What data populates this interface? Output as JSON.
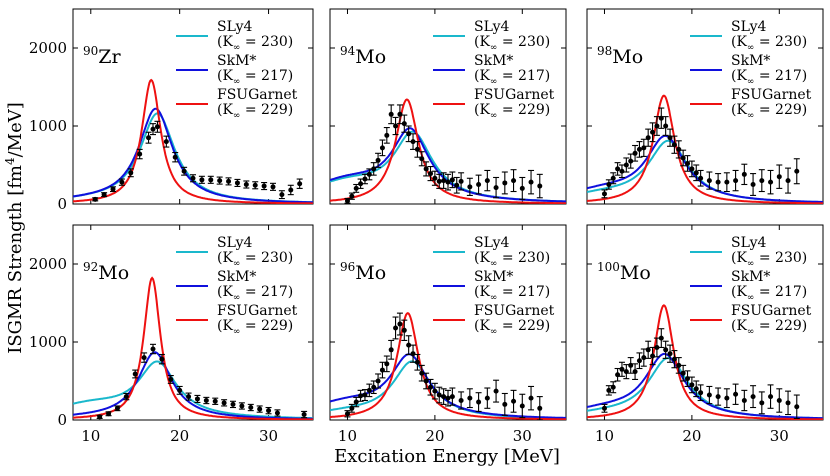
{
  "figure": {
    "ylabel": "ISGMR Strength [fm",
    "ylabel_sup": "4",
    "ylabel_tail": "/MeV]",
    "xlabel": "Excitation Energy [MeV]"
  },
  "legend": [
    {
      "name": "SLy4",
      "param": "(K",
      "sub": "∞",
      "value": " = 230)",
      "color": "#1ab8cc"
    },
    {
      "name": "SkM*",
      "param": "(K",
      "sub": "∞",
      "value": " = 217)",
      "color": "#1010dd"
    },
    {
      "name": "FSUGarnet",
      "param": "(K",
      "sub": "∞",
      "value": " = 229)",
      "color": "#ee1111"
    }
  ],
  "chart_data": [
    {
      "type": "line",
      "nucleus": "Zr",
      "mass": "90",
      "xlim": [
        8,
        35
      ],
      "ylim": [
        0,
        2500
      ],
      "xticks": [
        10,
        20,
        30
      ],
      "yticks": [
        0,
        1000,
        2000
      ],
      "xticklabels": [
        "10",
        "20",
        "30"
      ],
      "yticklabels": [
        "0",
        "1000",
        "2000"
      ],
      "series": [
        {
          "name": "SLy4",
          "peak": 17.5,
          "height": 1150,
          "width": 2.4,
          "base": 30
        },
        {
          "name": "SkM*",
          "peak": 17.3,
          "height": 1210,
          "width": 2.3,
          "base": 30
        },
        {
          "name": "FSUGarnet",
          "peak": 16.8,
          "height": 1590,
          "width": 1.3,
          "base": 0
        }
      ],
      "exp": [
        [
          10.5,
          60,
          20
        ],
        [
          11.5,
          120,
          25
        ],
        [
          12.5,
          190,
          30
        ],
        [
          13.5,
          280,
          40
        ],
        [
          14.5,
          400,
          50
        ],
        [
          15.5,
          640,
          60
        ],
        [
          16.5,
          850,
          70
        ],
        [
          17.0,
          960,
          70
        ],
        [
          17.5,
          990,
          70
        ],
        [
          18.5,
          800,
          70
        ],
        [
          19.5,
          600,
          60
        ],
        [
          20.5,
          420,
          50
        ],
        [
          21.5,
          330,
          45
        ],
        [
          22.5,
          310,
          45
        ],
        [
          23.5,
          310,
          45
        ],
        [
          24.5,
          300,
          45
        ],
        [
          25.5,
          290,
          45
        ],
        [
          26.5,
          270,
          45
        ],
        [
          27.5,
          250,
          45
        ],
        [
          28.5,
          240,
          45
        ],
        [
          29.5,
          230,
          45
        ],
        [
          30.5,
          220,
          45
        ],
        [
          31.5,
          120,
          50
        ],
        [
          32.5,
          180,
          60
        ],
        [
          33.5,
          260,
          60
        ]
      ]
    },
    {
      "type": "line",
      "nucleus": "Mo",
      "mass": "94",
      "xlim": [
        8,
        35
      ],
      "ylim": [
        0,
        2500
      ],
      "xticks": [
        10,
        20,
        30
      ],
      "yticks": [
        0,
        1000,
        2000
      ],
      "xticklabels": [
        "10",
        "20",
        "30"
      ],
      "yticklabels": [
        "",
        "",
        ""
      ],
      "series": [
        {
          "name": "SLy4",
          "peak": 17.5,
          "height": 830,
          "width": 2.7,
          "base": 250
        },
        {
          "name": "SkM*",
          "peak": 17.2,
          "height": 860,
          "width": 2.6,
          "base": 270
        },
        {
          "name": "FSUGarnet",
          "peak": 16.8,
          "height": 1340,
          "width": 1.6,
          "base": 0
        }
      ],
      "exp": [
        [
          10.0,
          40,
          30
        ],
        [
          10.5,
          100,
          40
        ],
        [
          11.0,
          200,
          50
        ],
        [
          11.5,
          260,
          60
        ],
        [
          12.0,
          320,
          60
        ],
        [
          12.5,
          380,
          70
        ],
        [
          13.0,
          450,
          80
        ],
        [
          13.5,
          560,
          90
        ],
        [
          14.0,
          720,
          100
        ],
        [
          14.5,
          880,
          100
        ],
        [
          15.0,
          1150,
          120
        ],
        [
          15.5,
          1000,
          110
        ],
        [
          16.0,
          1150,
          120
        ],
        [
          16.5,
          1030,
          110
        ],
        [
          17.0,
          900,
          100
        ],
        [
          17.5,
          800,
          100
        ],
        [
          18.0,
          700,
          100
        ],
        [
          18.5,
          580,
          90
        ],
        [
          19.0,
          450,
          90
        ],
        [
          19.5,
          390,
          90
        ],
        [
          20.0,
          330,
          90
        ],
        [
          20.5,
          290,
          90
        ],
        [
          21.0,
          300,
          100
        ],
        [
          21.5,
          280,
          100
        ],
        [
          22.0,
          310,
          100
        ],
        [
          22.5,
          240,
          100
        ],
        [
          23.0,
          290,
          110
        ],
        [
          24.0,
          220,
          110
        ],
        [
          25.0,
          250,
          120
        ],
        [
          26.0,
          300,
          130
        ],
        [
          27.0,
          210,
          130
        ],
        [
          28.0,
          270,
          140
        ],
        [
          29.0,
          300,
          140
        ],
        [
          30.0,
          200,
          140
        ],
        [
          31.0,
          280,
          150
        ],
        [
          32.0,
          230,
          150
        ]
      ]
    },
    {
      "type": "line",
      "nucleus": "Mo",
      "mass": "98",
      "xlim": [
        8,
        35
      ],
      "ylim": [
        0,
        2500
      ],
      "xticks": [
        10,
        20,
        30
      ],
      "yticks": [
        0,
        1000,
        2000
      ],
      "xticklabels": [
        "10",
        "20",
        "30"
      ],
      "yticklabels": [
        "",
        "",
        ""
      ],
      "series": [
        {
          "name": "SLy4",
          "peak": 17.3,
          "height": 770,
          "width": 2.8,
          "base": 100
        },
        {
          "name": "SkM*",
          "peak": 17.0,
          "height": 810,
          "width": 2.7,
          "base": 150
        },
        {
          "name": "FSUGarnet",
          "peak": 16.8,
          "height": 1390,
          "width": 1.5,
          "base": 0
        }
      ],
      "exp": [
        [
          10.0,
          130,
          50
        ],
        [
          10.5,
          250,
          60
        ],
        [
          11.0,
          330,
          70
        ],
        [
          11.5,
          450,
          80
        ],
        [
          12.0,
          420,
          80
        ],
        [
          12.5,
          500,
          90
        ],
        [
          13.0,
          550,
          90
        ],
        [
          13.5,
          650,
          100
        ],
        [
          14.0,
          700,
          100
        ],
        [
          14.5,
          720,
          110
        ],
        [
          15.0,
          850,
          110
        ],
        [
          15.5,
          920,
          120
        ],
        [
          16.0,
          1000,
          120
        ],
        [
          16.5,
          1100,
          130
        ],
        [
          17.0,
          1000,
          120
        ],
        [
          17.5,
          850,
          110
        ],
        [
          18.0,
          760,
          110
        ],
        [
          18.5,
          700,
          110
        ],
        [
          19.0,
          590,
          100
        ],
        [
          19.5,
          520,
          100
        ],
        [
          20.0,
          450,
          100
        ],
        [
          20.5,
          400,
          100
        ],
        [
          21.0,
          330,
          100
        ],
        [
          22.0,
          300,
          110
        ],
        [
          23.0,
          280,
          110
        ],
        [
          24.0,
          280,
          120
        ],
        [
          25.0,
          300,
          130
        ],
        [
          26.0,
          380,
          130
        ],
        [
          27.0,
          250,
          140
        ],
        [
          28.0,
          300,
          140
        ],
        [
          29.0,
          280,
          150
        ],
        [
          30.0,
          350,
          150
        ],
        [
          31.0,
          300,
          160
        ],
        [
          32.0,
          420,
          160
        ]
      ]
    },
    {
      "type": "line",
      "nucleus": "Mo",
      "mass": "92",
      "xlim": [
        8,
        35
      ],
      "ylim": [
        0,
        2500
      ],
      "xticks": [
        10,
        20,
        30
      ],
      "yticks": [
        0,
        1000,
        2000
      ],
      "xticklabels": [
        "10",
        "20",
        "30"
      ],
      "yticklabels": [
        "0",
        "1000",
        "2000"
      ],
      "series": [
        {
          "name": "SLy4",
          "peak": 17.5,
          "height": 680,
          "width": 2.6,
          "base": 180
        },
        {
          "name": "SkM*",
          "peak": 17.2,
          "height": 860,
          "width": 2.3,
          "base": 20
        },
        {
          "name": "FSUGarnet",
          "peak": 16.9,
          "height": 1820,
          "width": 1.15,
          "base": 0
        }
      ],
      "exp": [
        [
          11.0,
          40,
          20
        ],
        [
          12.0,
          80,
          25
        ],
        [
          13.0,
          150,
          30
        ],
        [
          14.0,
          300,
          40
        ],
        [
          15.0,
          590,
          50
        ],
        [
          16.0,
          800,
          60
        ],
        [
          17.0,
          910,
          60
        ],
        [
          18.0,
          780,
          60
        ],
        [
          19.0,
          520,
          50
        ],
        [
          20.0,
          380,
          50
        ],
        [
          21.0,
          300,
          45
        ],
        [
          22.0,
          270,
          45
        ],
        [
          23.0,
          250,
          40
        ],
        [
          24.0,
          240,
          40
        ],
        [
          25.0,
          220,
          40
        ],
        [
          26.0,
          200,
          40
        ],
        [
          27.0,
          180,
          40
        ],
        [
          28.0,
          160,
          40
        ],
        [
          29.0,
          140,
          40
        ],
        [
          30.0,
          120,
          40
        ],
        [
          31.0,
          90,
          40
        ],
        [
          34.0,
          70,
          40
        ]
      ]
    },
    {
      "type": "line",
      "nucleus": "Mo",
      "mass": "96",
      "xlim": [
        8,
        35
      ],
      "ylim": [
        0,
        2500
      ],
      "xticks": [
        10,
        20,
        30
      ],
      "yticks": [
        0,
        1000,
        2000
      ],
      "xticklabels": [
        "10",
        "20",
        "30"
      ],
      "yticklabels": [
        "",
        "",
        ""
      ],
      "series": [
        {
          "name": "SLy4",
          "peak": 17.4,
          "height": 720,
          "width": 2.7,
          "base": 80
        },
        {
          "name": "SkM*",
          "peak": 17.1,
          "height": 760,
          "width": 2.6,
          "base": 200
        },
        {
          "name": "FSUGarnet",
          "peak": 16.9,
          "height": 1370,
          "width": 1.5,
          "base": 0
        }
      ],
      "exp": [
        [
          10.0,
          80,
          40
        ],
        [
          10.5,
          150,
          50
        ],
        [
          11.0,
          230,
          60
        ],
        [
          11.5,
          310,
          70
        ],
        [
          12.0,
          320,
          70
        ],
        [
          12.5,
          380,
          80
        ],
        [
          13.0,
          420,
          80
        ],
        [
          13.5,
          500,
          90
        ],
        [
          14.0,
          640,
          100
        ],
        [
          14.5,
          720,
          100
        ],
        [
          15.0,
          900,
          120
        ],
        [
          15.5,
          1180,
          140
        ],
        [
          16.0,
          1230,
          140
        ],
        [
          16.5,
          1150,
          130
        ],
        [
          17.0,
          960,
          120
        ],
        [
          17.5,
          850,
          110
        ],
        [
          18.0,
          740,
          100
        ],
        [
          18.5,
          600,
          100
        ],
        [
          19.0,
          500,
          100
        ],
        [
          19.5,
          420,
          100
        ],
        [
          20.0,
          370,
          100
        ],
        [
          20.5,
          320,
          100
        ],
        [
          21.0,
          300,
          100
        ],
        [
          21.5,
          280,
          100
        ],
        [
          22.0,
          300,
          110
        ],
        [
          23.0,
          250,
          110
        ],
        [
          24.0,
          280,
          120
        ],
        [
          25.0,
          230,
          120
        ],
        [
          26.0,
          280,
          130
        ],
        [
          27.0,
          370,
          140
        ],
        [
          28.0,
          200,
          140
        ],
        [
          29.0,
          240,
          140
        ],
        [
          30.0,
          180,
          150
        ],
        [
          31.0,
          280,
          150
        ],
        [
          32.0,
          150,
          150
        ]
      ]
    },
    {
      "type": "line",
      "nucleus": "Mo",
      "mass": "100",
      "xlim": [
        8,
        35
      ],
      "ylim": [
        0,
        2500
      ],
      "xticks": [
        10,
        20,
        30
      ],
      "yticks": [
        0,
        1000,
        2000
      ],
      "xticklabels": [
        "10",
        "20",
        "30"
      ],
      "yticklabels": [
        "",
        "",
        ""
      ],
      "series": [
        {
          "name": "SLy4",
          "peak": 17.3,
          "height": 770,
          "width": 2.8,
          "base": 60
        },
        {
          "name": "SkM*",
          "peak": 16.9,
          "height": 800,
          "width": 2.7,
          "base": 110
        },
        {
          "name": "FSUGarnet",
          "peak": 16.8,
          "height": 1470,
          "width": 1.4,
          "base": 0
        }
      ],
      "exp": [
        [
          10.0,
          150,
          50
        ],
        [
          10.5,
          380,
          60
        ],
        [
          11.0,
          420,
          70
        ],
        [
          11.5,
          580,
          80
        ],
        [
          12.0,
          650,
          90
        ],
        [
          12.5,
          620,
          90
        ],
        [
          13.0,
          700,
          100
        ],
        [
          13.5,
          620,
          100
        ],
        [
          14.0,
          760,
          100
        ],
        [
          14.5,
          800,
          110
        ],
        [
          15.0,
          900,
          110
        ],
        [
          15.5,
          820,
          110
        ],
        [
          16.0,
          930,
          120
        ],
        [
          16.5,
          1050,
          120
        ],
        [
          17.0,
          900,
          110
        ],
        [
          17.5,
          850,
          110
        ],
        [
          18.0,
          780,
          110
        ],
        [
          18.5,
          700,
          100
        ],
        [
          19.0,
          600,
          100
        ],
        [
          19.5,
          530,
          100
        ],
        [
          20.0,
          450,
          100
        ],
        [
          20.5,
          400,
          100
        ],
        [
          21.0,
          350,
          100
        ],
        [
          22.0,
          320,
          110
        ],
        [
          23.0,
          300,
          110
        ],
        [
          24.0,
          280,
          120
        ],
        [
          25.0,
          330,
          130
        ],
        [
          26.0,
          250,
          130
        ],
        [
          27.0,
          300,
          140
        ],
        [
          28.0,
          220,
          140
        ],
        [
          29.0,
          300,
          150
        ],
        [
          30.0,
          250,
          150
        ],
        [
          31.0,
          220,
          150
        ],
        [
          32.0,
          170,
          150
        ]
      ]
    }
  ]
}
